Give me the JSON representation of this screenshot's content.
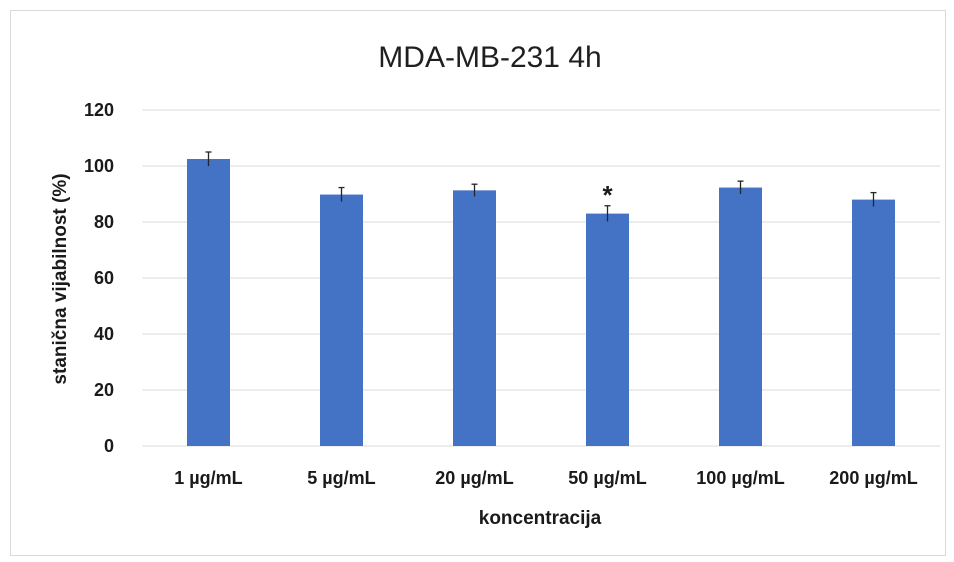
{
  "chart_data": {
    "type": "bar",
    "title": "MDA-MB-231 4h",
    "xlabel": "koncentracija",
    "ylabel": "stanična vijabilnost (%)",
    "categories": [
      "1 µg/mL",
      "5 µg/mL",
      "20 µg/mL",
      "50 µg/mL",
      "100 µg/mL",
      "200 µg/mL"
    ],
    "series": [
      {
        "values": [
          102.5,
          89.8,
          91.3,
          83.0,
          92.3,
          88.0
        ],
        "error": [
          2.5,
          2.5,
          2.2,
          2.8,
          2.3,
          2.5
        ]
      }
    ],
    "ylim": [
      0,
      120
    ],
    "yticks": [
      "0",
      "20",
      "40",
      "60",
      "80",
      "100",
      "120"
    ],
    "grid": true,
    "legend": "none",
    "bar_color": "#4472c4",
    "annotations": [
      {
        "category": "50 µg/mL",
        "text": "*"
      }
    ]
  }
}
